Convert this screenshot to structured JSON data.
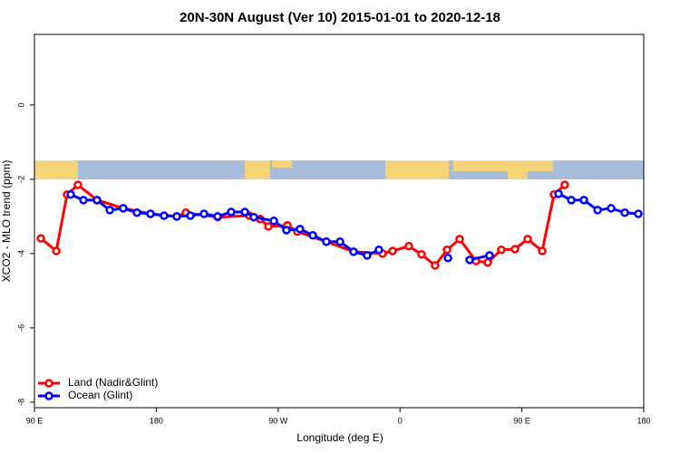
{
  "chart_data": {
    "type": "line",
    "title": "20N-30N August (Ver 10)   2015-01-01 to 2020-12-18",
    "xlabel": "Longitude (deg E)",
    "ylabel": "XCO2 - MLO trend (ppm)",
    "xlim": [
      90,
      540
    ],
    "ylim": [
      -8.15,
      1.9
    ],
    "xticks": [
      {
        "value": 90,
        "label": "90 E"
      },
      {
        "value": 180,
        "label": "180"
      },
      {
        "value": 270,
        "label": "90 W"
      },
      {
        "value": 360,
        "label": "0"
      },
      {
        "value": 450,
        "label": "90 E"
      },
      {
        "value": 540,
        "label": "180"
      }
    ],
    "yticks": [
      0,
      -2,
      -4,
      -6,
      -8
    ],
    "legend": "bottom-left",
    "series": [
      {
        "name": "Land (Nadir&Glint)",
        "color": "#ff0000",
        "x": [
          94.7,
          106.1,
          114.1,
          122.1,
          136.2,
          155.6,
          175.7,
          195.1,
          201.8,
          225.3,
          248.7,
          256.7,
          262.8,
          276.8,
          284.2,
          305.6,
          325.7,
          347.1,
          354.5,
          366.5,
          375.9,
          385.9,
          394.7,
          404.0,
          416.1,
          424.8,
          434.8,
          444.9,
          454.3,
          465.0,
          473.7,
          481.7
        ],
        "values": [
          -3.59,
          -3.93,
          -2.41,
          -2.15,
          -2.56,
          -2.78,
          -2.93,
          -3.0,
          -2.9,
          -3.02,
          -2.98,
          -3.07,
          -3.27,
          -3.24,
          -3.41,
          -3.68,
          -3.95,
          -4.0,
          -3.93,
          -3.8,
          -4.02,
          -4.32,
          -3.9,
          -3.61,
          -4.2,
          -4.24,
          -3.9,
          -3.88,
          -3.61,
          -3.93,
          -2.41,
          -2.15
        ]
      },
      {
        "name": "Ocean (Glint)",
        "color": "#0000ff",
        "x": [
          116.8,
          126.2,
          136.2,
          145.6,
          155.6,
          165.7,
          175.7,
          185.7,
          195.1,
          205.2,
          215.2,
          225.3,
          235.3,
          245.4,
          252.0,
          266.8,
          276.1,
          286.1,
          295.6,
          305.6,
          315.7,
          325.7,
          335.7,
          344.4,
          370.0,
          395.4,
          403.0,
          411.4,
          426.1,
          460.0,
          477.1,
          486.5,
          495.8,
          505.9,
          515.9,
          526.0,
          536.0
        ],
        "values": [
          -2.41,
          -2.56,
          -2.56,
          -2.83,
          -2.78,
          -2.9,
          -2.93,
          -2.98,
          -3.0,
          -2.98,
          -2.93,
          -3.0,
          -2.88,
          -2.88,
          -3.02,
          -3.12,
          -3.37,
          -3.34,
          -3.51,
          -3.68,
          -3.68,
          -3.95,
          -4.05,
          -3.9,
          null,
          -4.12,
          null,
          -4.17,
          -4.05,
          null,
          -2.39,
          -2.56,
          -2.56,
          -2.83,
          -2.78,
          -2.9,
          -2.93
        ]
      }
    ]
  }
}
